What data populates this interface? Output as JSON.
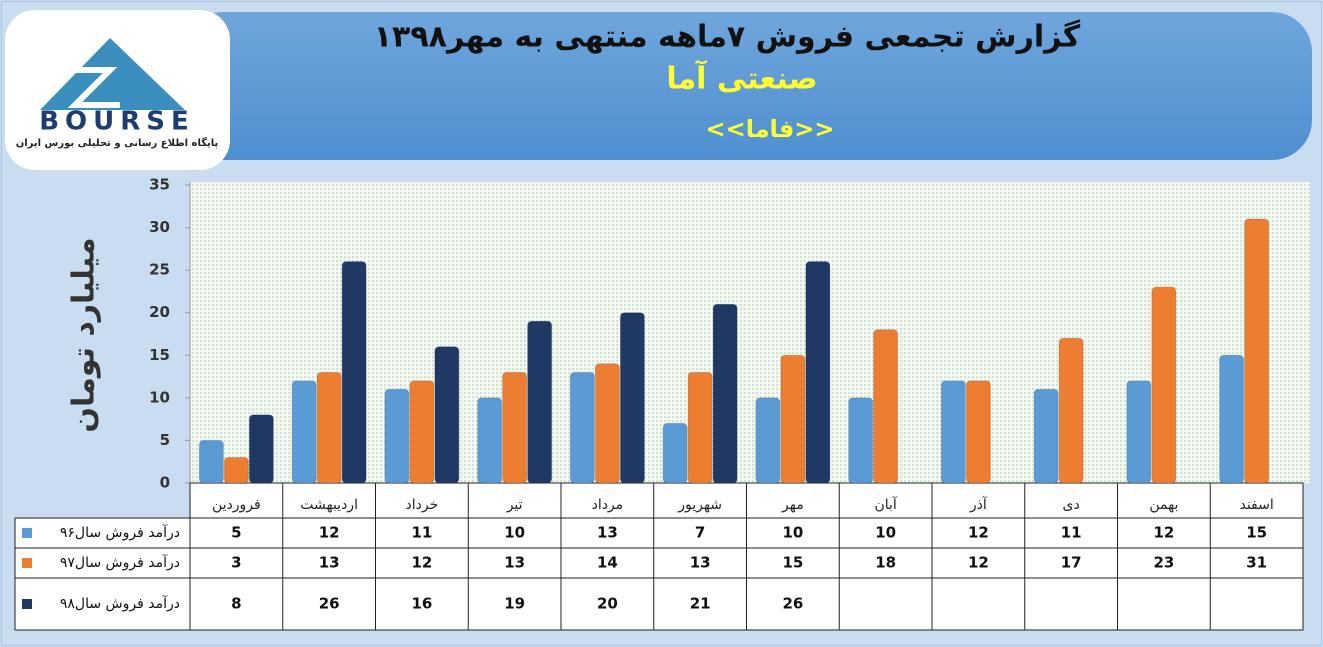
{
  "logo": {
    "brand": "BOURSE",
    "tagline": "پایگاه اطلاع رسانی و تحلیلی بورس ایران"
  },
  "chart_data": {
    "type": "bar",
    "title": "گزارش تجمعی فروش ۷ماهه منتهی به مهر۱۳۹۸",
    "subtitle": "صنعتی آما",
    "symbol": "<<فاما>>",
    "y_label": "میلیارد تومان",
    "categories": [
      "فروردین",
      "اردیبهشت",
      "خرداد",
      "تیر",
      "مرداد",
      "شهریور",
      "مهر",
      "آبان",
      "آذر",
      "دی",
      "بهمن",
      "اسفند"
    ],
    "series": [
      {
        "name": "درآمد فروش سال۹۶",
        "color": "#5b9bd5",
        "values": [
          5,
          12,
          11,
          10,
          13,
          7,
          10,
          10,
          12,
          11,
          12,
          15
        ]
      },
      {
        "name": "درآمد فروش سال۹۷",
        "color": "#ed7d31",
        "values": [
          3,
          13,
          12,
          13,
          14,
          13,
          15,
          18,
          12,
          17,
          23,
          31
        ]
      },
      {
        "name": "درآمد فروش  سال۹۸",
        "color": "#1f3864",
        "values": [
          8,
          26,
          16,
          19,
          20,
          21,
          26,
          null,
          null,
          null,
          null,
          null
        ]
      }
    ],
    "ylim": [
      0,
      35
    ],
    "yticks": [
      0,
      5,
      10,
      15,
      20,
      25,
      30,
      35
    ],
    "grid": false
  }
}
